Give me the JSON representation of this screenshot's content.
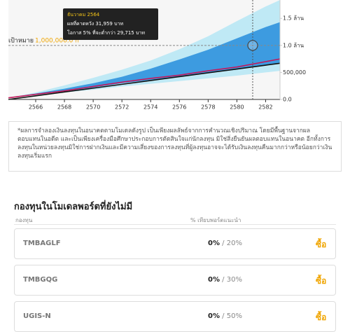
{
  "chart_data": {
    "type": "fan",
    "x": [
      2564.1,
      2566,
      2568,
      2570,
      2572,
      2574,
      2576,
      2578,
      2580,
      2582,
      2583
    ],
    "xlim": [
      2564.1,
      2583
    ],
    "xticks": [
      2566,
      2568,
      2570,
      2572,
      2574,
      2576,
      2578,
      2580,
      2582
    ],
    "ylim": [
      0,
      1840000
    ],
    "yticks": [
      {
        "value": 0,
        "label": "0.0"
      },
      {
        "value": 500000,
        "label": "500,000"
      },
      {
        "value": 1000000,
        "label": "1.0 ล้าน"
      },
      {
        "value": 1500000,
        "label": "1.5 ล้าน"
      }
    ],
    "bands": [
      {
        "color": "#bfe9f5",
        "upper": [
          30000,
          130000,
          260000,
          400000,
          550000,
          720000,
          930000,
          1170000,
          1450000,
          1720000,
          1840000
        ],
        "lower": [
          30000,
          80000,
          130000,
          180000,
          240000,
          290000,
          340000,
          390000,
          440000,
          500000,
          530000
        ]
      },
      {
        "color": "#3d9be0",
        "upper": [
          30000,
          110000,
          200000,
          300000,
          420000,
          570000,
          740000,
          920000,
          1130000,
          1340000,
          1430000
        ],
        "lower": [
          30000,
          90000,
          150000,
          220000,
          300000,
          360000,
          420000,
          490000,
          550000,
          630000,
          680000
        ]
      }
    ],
    "series": [
      {
        "color": "#c2185b",
        "values": [
          30000,
          95000,
          160000,
          240000,
          320000,
          390000,
          450000,
          530000,
          600000,
          700000,
          750000
        ]
      },
      {
        "color": "#111111",
        "values": [
          0,
          67000,
          138000,
          209000,
          280000,
          351000,
          422000,
          493000,
          563000,
          634000,
          670000
        ]
      }
    ],
    "target": {
      "label": "เป้าหมาย",
      "value": 1000000,
      "value_label": "1,000,000.0 ก"
    },
    "marker": {
      "x": 2581.1,
      "value": 1000000
    },
    "tooltip": {
      "date": "ธันวาคม 2564",
      "expected": "ผลที่คาดหวัง 31,959 บาท",
      "chance": "โอกาส 5% ที่จะต่ำกว่า 29,715 บาท"
    }
  },
  "disclaimer": "*ผลการจำลองเงินลงทุนในอนาคตตามโมเดลดังรูป เป็นเพียงผลลัพธ์จากการคำนวณเชิงปริมาณ โดยมีพื้นฐานจากผลตอบแทนในอดีต และเป็นเพียงเครื่องมือศึกษาประกอบการตัดสินใจแก่นักลงทุน มิใช่สิ่งยืนยันผลตอบแทนในอนาคต อีกทั้งการลงทุนในหน่วยลงทุนมิใช่การฝากเงินและมีความเสี่ยงของการลงทุนที่ผู้ลงทุนอาจจะได้รับเงินลงทุนคืนมากกว่าหรือน้อยกว่าเงินลงทุนเริ่มแรก",
  "section": {
    "title": "กองทุนในโมเดลพอร์ตที่ยังไม่มี",
    "col_fund": "กองทุน",
    "col_pct": "% เทียบพอร์ตแนะนำ",
    "rows": [
      {
        "fund": "TMBAGLF",
        "current": "0%",
        "target": "20%",
        "action": "ซื้อ"
      },
      {
        "fund": "TMBGQG",
        "current": "0%",
        "target": "30%",
        "action": "ซื้อ"
      },
      {
        "fund": "UGIS-N",
        "current": "0%",
        "target": "50%",
        "action": "ซื้อ"
      }
    ]
  }
}
